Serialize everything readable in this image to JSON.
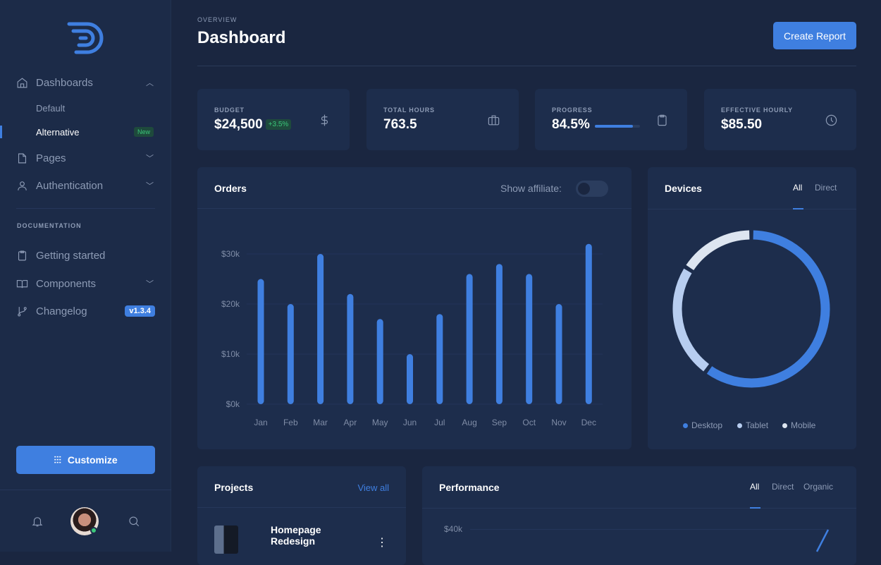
{
  "sidebar": {
    "nav": [
      {
        "label": "Dashboards",
        "icon": "home-icon",
        "expanded": true
      },
      {
        "label": "Pages",
        "icon": "file-icon"
      },
      {
        "label": "Authentication",
        "icon": "user-icon"
      }
    ],
    "sub": [
      {
        "label": "Default"
      },
      {
        "label": "Alternative",
        "active": true,
        "badge": "New"
      }
    ],
    "section": "DOCUMENTATION",
    "docs": [
      {
        "label": "Getting started",
        "icon": "clipboard-icon"
      },
      {
        "label": "Components",
        "icon": "book-icon"
      },
      {
        "label": "Changelog",
        "icon": "git-branch-icon",
        "badge": "v1.3.4"
      }
    ],
    "customize": "Customize"
  },
  "header": {
    "overline": "OVERVIEW",
    "title": "Dashboard",
    "create": "Create Report"
  },
  "stats": [
    {
      "label": "BUDGET",
      "value": "$24,500",
      "change": "+3.5%",
      "icon": "dollar-icon"
    },
    {
      "label": "TOTAL HOURS",
      "value": "763.5",
      "icon": "briefcase-icon"
    },
    {
      "label": "PROGRESS",
      "value": "84.5%",
      "progress": 84.5,
      "icon": "clipboard-icon"
    },
    {
      "label": "EFFECTIVE HOURLY",
      "value": "$85.50",
      "icon": "clock-icon"
    }
  ],
  "orders": {
    "title": "Orders",
    "toggle_label": "Show affiliate:",
    "toggle_on": false
  },
  "devices": {
    "title": "Devices",
    "tabs": [
      "All",
      "Direct"
    ]
  },
  "projects": {
    "title": "Projects",
    "view_all": "View all",
    "items": [
      {
        "name_line1": "Homepage",
        "name_line2": "Redesign"
      }
    ]
  },
  "performance": {
    "title": "Performance",
    "tabs": [
      "All",
      "Direct",
      "Organic"
    ],
    "ytick": "$40k"
  },
  "colors": {
    "accent": "#3f7fe0",
    "tablet": "#b7cdf0",
    "mobile": "#dde5f0",
    "success": "#3bc77a"
  },
  "chart_data": [
    {
      "type": "bar",
      "title": "Orders",
      "categories": [
        "Jan",
        "Feb",
        "Mar",
        "Apr",
        "May",
        "Jun",
        "Jul",
        "Aug",
        "Sep",
        "Oct",
        "Nov",
        "Dec"
      ],
      "values": [
        25000,
        20000,
        30000,
        22000,
        17000,
        10000,
        18000,
        26000,
        28000,
        26000,
        20000,
        32000
      ],
      "yticks": [
        "$0k",
        "$10k",
        "$20k",
        "$30k"
      ],
      "ylim": [
        0,
        30000
      ],
      "grid": true
    },
    {
      "type": "pie",
      "title": "Devices",
      "donut": true,
      "labels": [
        "Desktop",
        "Tablet",
        "Mobile"
      ],
      "values": [
        60,
        24,
        16
      ],
      "legend": "bottom"
    }
  ]
}
